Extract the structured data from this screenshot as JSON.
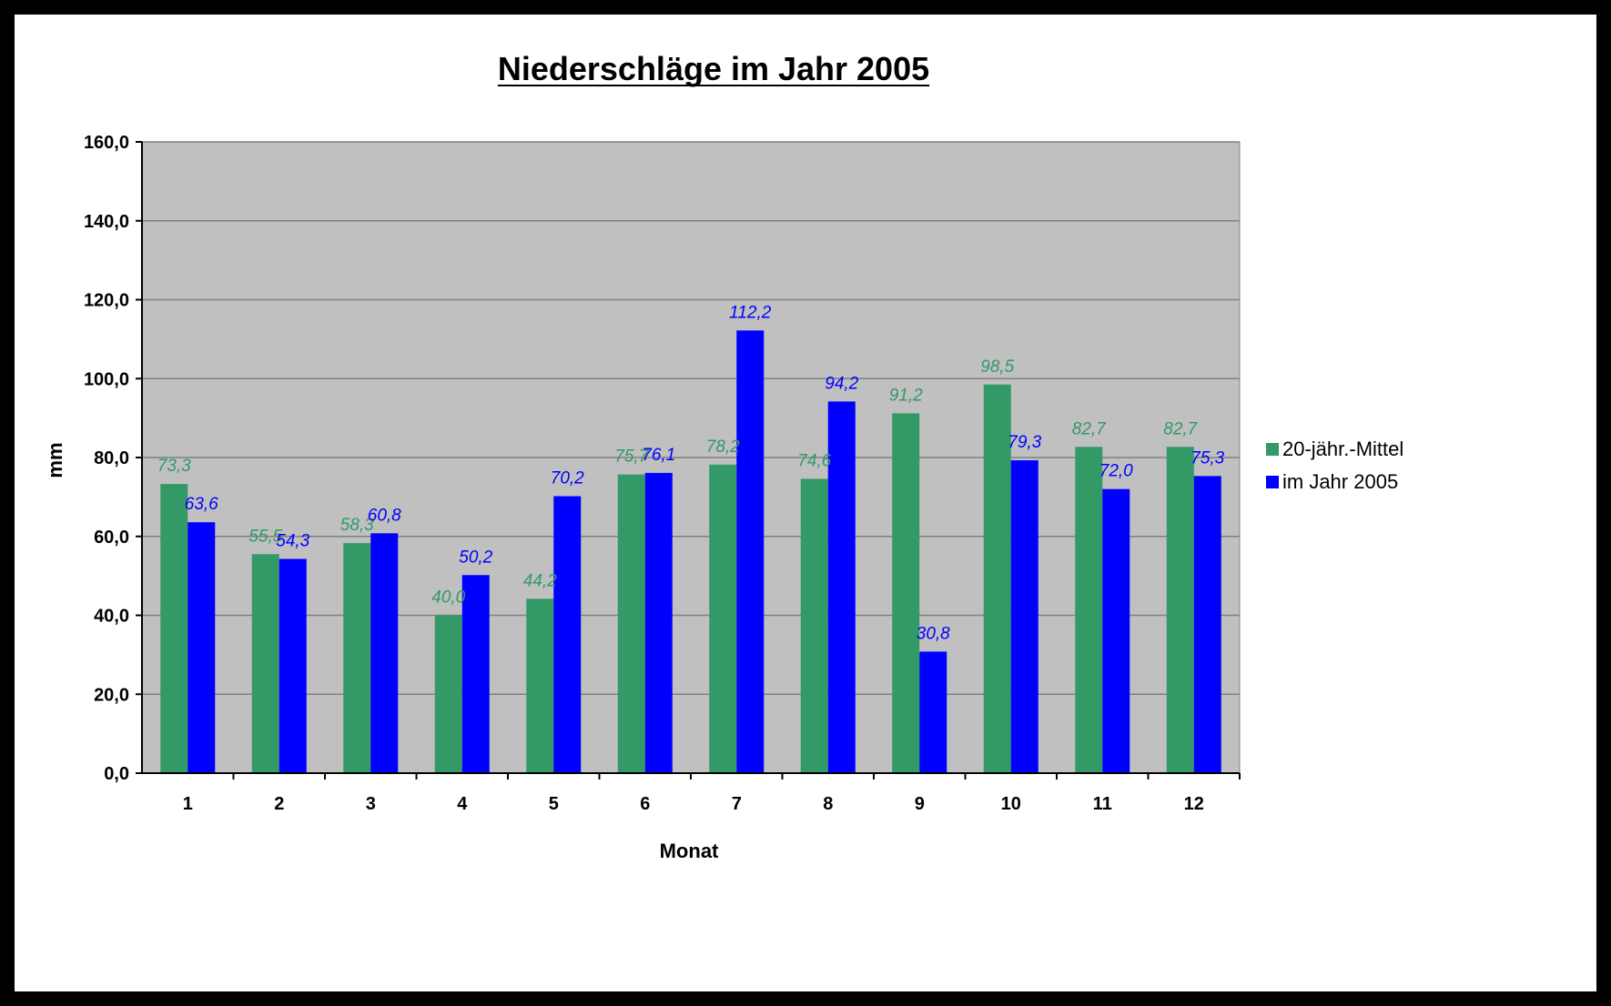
{
  "colors": {
    "series1": "#339966",
    "series2": "#0000FF",
    "plot_bg": "#C0C0C0",
    "grid": "#808080"
  },
  "chart_data": {
    "type": "bar",
    "title": "Niederschläge im Jahr 2005",
    "xlabel": "Monat",
    "ylabel": "mm",
    "ylim": [
      0,
      160
    ],
    "yticks": [
      "0,0",
      "20,0",
      "40,0",
      "60,0",
      "80,0",
      "100,0",
      "120,0",
      "140,0",
      "160,0"
    ],
    "categories": [
      "1",
      "2",
      "3",
      "4",
      "5",
      "6",
      "7",
      "8",
      "9",
      "10",
      "11",
      "12"
    ],
    "series": [
      {
        "name": "20-jähr.-Mittel",
        "values": [
          73.3,
          55.5,
          58.3,
          40.0,
          44.2,
          75.7,
          78.2,
          74.6,
          91.2,
          98.5,
          82.7,
          82.7
        ],
        "labels": [
          "73,3",
          "55,5",
          "58,3",
          "40,0",
          "44,2",
          "75,7",
          "78,2",
          "74,6",
          "91,2",
          "98,5",
          "82,7",
          "82,7"
        ]
      },
      {
        "name": "im Jahr 2005",
        "values": [
          63.6,
          54.3,
          60.8,
          50.2,
          70.2,
          76.1,
          112.2,
          94.2,
          30.8,
          79.3,
          72.0,
          75.3
        ],
        "labels": [
          "63,6",
          "54,3",
          "60,8",
          "50,2",
          "70,2",
          "76,1",
          "112,2",
          "94,2",
          "30,8",
          "79,3",
          "72,0",
          "75,3"
        ]
      }
    ],
    "grid": true,
    "legend": "right"
  }
}
